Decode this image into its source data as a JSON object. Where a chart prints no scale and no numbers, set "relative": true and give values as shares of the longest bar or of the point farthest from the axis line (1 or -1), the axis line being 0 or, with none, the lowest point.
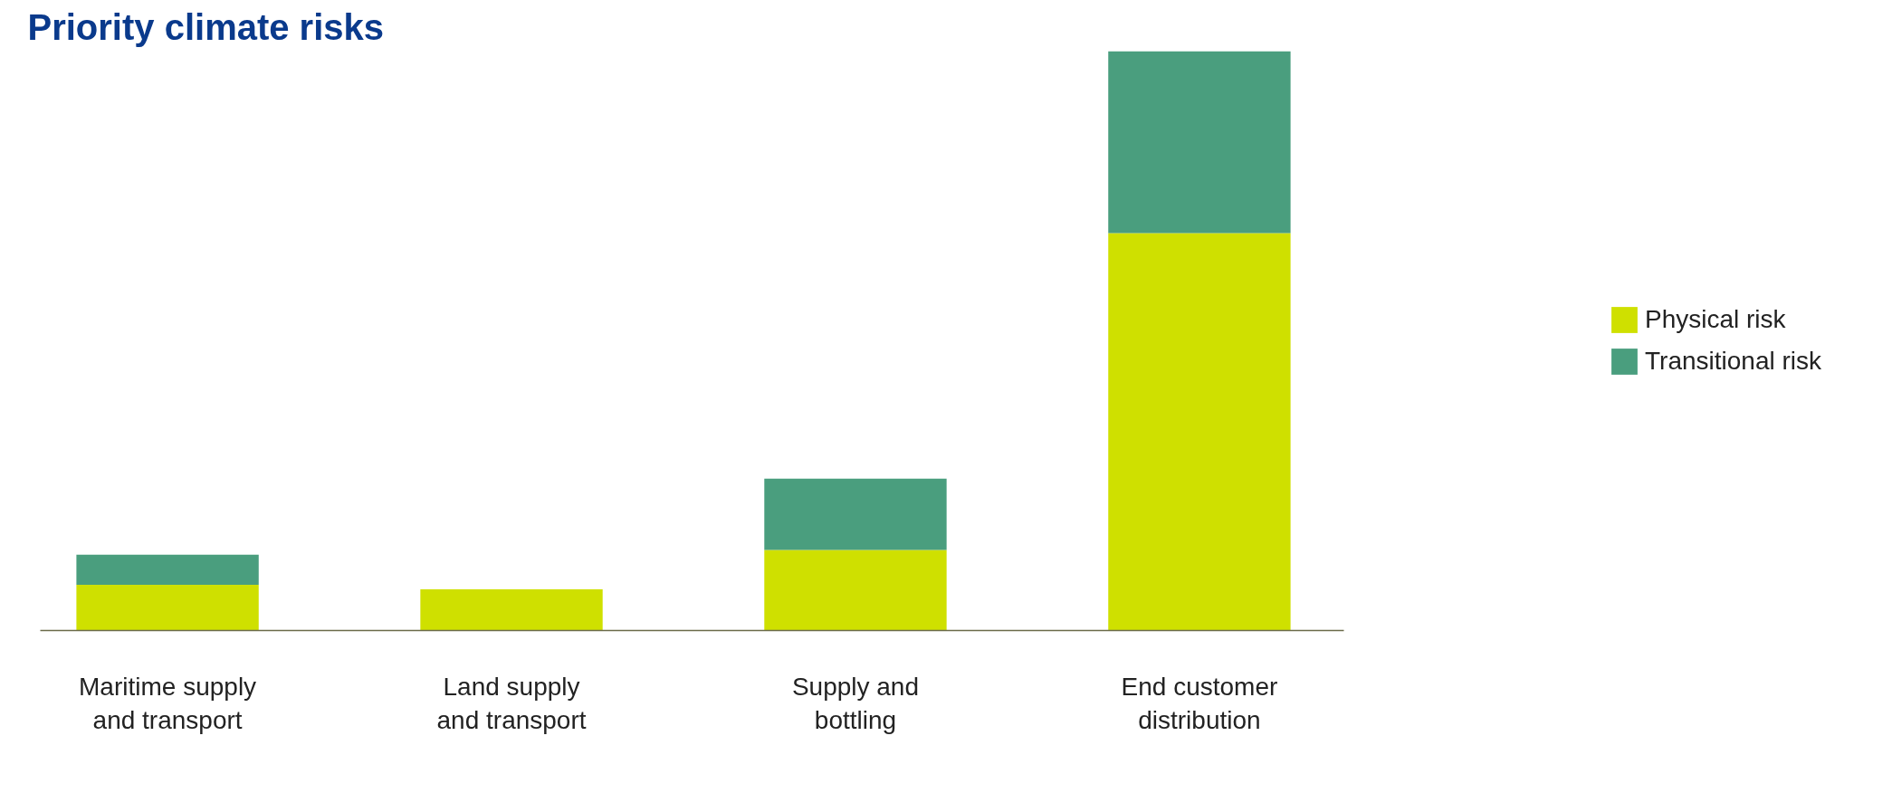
{
  "chart_data": {
    "type": "bar",
    "title": "Priority climate risks",
    "relative": true,
    "stacked": true,
    "legend": "right",
    "grid": false,
    "categories": [
      "Maritime supply\nand transport",
      "Land supply\nand transport",
      "Supply and\nbottling",
      "End customer\ndistribution"
    ],
    "series": [
      {
        "name": "Physical risk",
        "color": "#cfe000",
        "values": [
          0.079,
          0.071,
          0.139,
          0.686
        ]
      },
      {
        "name": "Transitional risk",
        "color": "#4a9e7e",
        "values": [
          0.052,
          0,
          0.123,
          0.314
        ]
      }
    ]
  }
}
